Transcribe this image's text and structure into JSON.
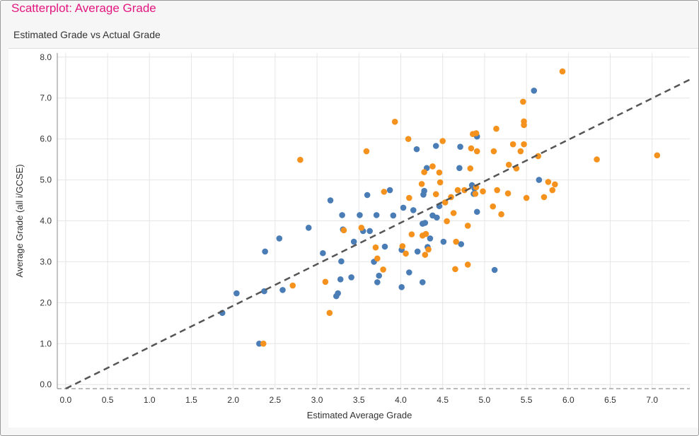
{
  "page": {
    "title": "Scatterplot: Average Grade",
    "subtitle": "Estimated Grade vs Actual Grade"
  },
  "colors": {
    "title": "#e3177f",
    "series_blue": "#4a7db5",
    "series_orange": "#f5921e",
    "trend_line": "#555555",
    "grid": "#e6e6e6"
  },
  "chart_data": {
    "type": "scatter",
    "title": "",
    "xlabel": "Estimated Average Grade",
    "ylabel": "Average Grade (all i/GCSE)",
    "xlim": [
      -0.1,
      7.45
    ],
    "ylim": [
      -0.1,
      8.1
    ],
    "xticks": [
      "0.0",
      "0.5",
      "1.0",
      "1.5",
      "2.0",
      "2.5",
      "3.0",
      "3.5",
      "4.0",
      "4.5",
      "5.0",
      "5.5",
      "6.0",
      "6.5",
      "7.0"
    ],
    "yticks": [
      "0.0",
      "1.0",
      "2.0",
      "3.0",
      "4.0",
      "5.0",
      "6.0",
      "7.0",
      "8.0"
    ],
    "grid": true,
    "legend": "none",
    "reference_line": {
      "style": "dashed",
      "from": [
        0.0,
        -0.1
      ],
      "to": [
        7.45,
        7.45
      ]
    },
    "series": [
      {
        "color": "#4a7db5",
        "points": [
          [
            1.87,
            1.75
          ],
          [
            2.04,
            2.23
          ],
          [
            2.31,
            1.0
          ],
          [
            2.37,
            2.28
          ],
          [
            2.38,
            3.25
          ],
          [
            2.55,
            3.57
          ],
          [
            2.59,
            2.31
          ],
          [
            2.9,
            3.83
          ],
          [
            3.07,
            3.21
          ],
          [
            3.16,
            4.5
          ],
          [
            3.23,
            2.16
          ],
          [
            3.25,
            2.23
          ],
          [
            3.28,
            2.57
          ],
          [
            3.29,
            3.01
          ],
          [
            3.3,
            4.14
          ],
          [
            3.31,
            3.79
          ],
          [
            3.41,
            2.62
          ],
          [
            3.44,
            3.49
          ],
          [
            3.51,
            4.14
          ],
          [
            3.55,
            3.75
          ],
          [
            3.6,
            4.63
          ],
          [
            3.63,
            3.75
          ],
          [
            3.68,
            3.0
          ],
          [
            3.71,
            4.14
          ],
          [
            3.72,
            2.5
          ],
          [
            3.74,
            2.66
          ],
          [
            3.81,
            3.37
          ],
          [
            3.87,
            4.75
          ],
          [
            3.91,
            4.13
          ],
          [
            4.01,
            3.29
          ],
          [
            4.01,
            2.38
          ],
          [
            4.03,
            4.32
          ],
          [
            4.1,
            2.74
          ],
          [
            4.15,
            4.26
          ],
          [
            4.19,
            5.75
          ],
          [
            4.2,
            3.25
          ],
          [
            4.26,
            3.93
          ],
          [
            4.26,
            2.5
          ],
          [
            4.27,
            4.64
          ],
          [
            4.28,
            4.73
          ],
          [
            4.29,
            3.95
          ],
          [
            4.31,
            5.29
          ],
          [
            4.32,
            3.36
          ],
          [
            4.35,
            3.57
          ],
          [
            4.38,
            4.13
          ],
          [
            4.42,
            5.83
          ],
          [
            4.43,
            4.08
          ],
          [
            4.46,
            4.36
          ],
          [
            4.51,
            3.49
          ],
          [
            4.7,
            5.29
          ],
          [
            4.71,
            5.81
          ],
          [
            4.72,
            3.43
          ],
          [
            4.85,
            4.87
          ],
          [
            4.87,
            4.66
          ],
          [
            4.88,
            4.79
          ],
          [
            4.91,
            6.06
          ],
          [
            4.91,
            4.22
          ],
          [
            5.12,
            2.8
          ],
          [
            5.59,
            7.18
          ],
          [
            5.65,
            5.0
          ]
        ]
      },
      {
        "color": "#f5921e",
        "points": [
          [
            2.36,
            1.0
          ],
          [
            2.71,
            2.42
          ],
          [
            2.8,
            5.49
          ],
          [
            3.1,
            2.51
          ],
          [
            3.15,
            1.75
          ],
          [
            3.32,
            3.77
          ],
          [
            3.53,
            3.83
          ],
          [
            3.59,
            5.7
          ],
          [
            3.7,
            3.35
          ],
          [
            3.72,
            3.08
          ],
          [
            3.79,
            2.81
          ],
          [
            3.8,
            4.71
          ],
          [
            3.93,
            6.42
          ],
          [
            4.02,
            3.38
          ],
          [
            4.06,
            3.2
          ],
          [
            4.09,
            6.0
          ],
          [
            4.1,
            4.56
          ],
          [
            4.13,
            3.67
          ],
          [
            4.25,
            4.9
          ],
          [
            4.26,
            3.64
          ],
          [
            4.28,
            5.19
          ],
          [
            4.29,
            3.17
          ],
          [
            4.3,
            3.68
          ],
          [
            4.33,
            3.3
          ],
          [
            4.38,
            5.33
          ],
          [
            4.42,
            4.65
          ],
          [
            4.46,
            5.18
          ],
          [
            4.47,
            4.94
          ],
          [
            4.5,
            5.95
          ],
          [
            4.53,
            4.45
          ],
          [
            4.55,
            3.99
          ],
          [
            4.6,
            4.58
          ],
          [
            4.63,
            4.19
          ],
          [
            4.65,
            2.82
          ],
          [
            4.66,
            3.49
          ],
          [
            4.68,
            4.75
          ],
          [
            4.76,
            4.75
          ],
          [
            4.8,
            3.88
          ],
          [
            4.8,
            2.93
          ],
          [
            4.83,
            5.28
          ],
          [
            4.84,
            5.77
          ],
          [
            4.86,
            6.12
          ],
          [
            4.89,
            4.66
          ],
          [
            4.9,
            6.14
          ],
          [
            4.9,
            4.82
          ],
          [
            4.91,
            5.7
          ],
          [
            4.98,
            4.72
          ],
          [
            5.1,
            4.35
          ],
          [
            5.11,
            5.7
          ],
          [
            5.14,
            6.25
          ],
          [
            5.15,
            4.75
          ],
          [
            5.2,
            4.16
          ],
          [
            5.28,
            4.67
          ],
          [
            5.29,
            5.37
          ],
          [
            5.34,
            5.87
          ],
          [
            5.38,
            5.28
          ],
          [
            5.43,
            5.7
          ],
          [
            5.46,
            6.91
          ],
          [
            5.47,
            6.43
          ],
          [
            5.47,
            6.34
          ],
          [
            5.47,
            5.87
          ],
          [
            5.5,
            4.56
          ],
          [
            5.64,
            5.58
          ],
          [
            5.71,
            4.58
          ],
          [
            5.76,
            4.95
          ],
          [
            5.81,
            4.75
          ],
          [
            5.84,
            4.89
          ],
          [
            5.93,
            7.65
          ],
          [
            6.34,
            5.5
          ],
          [
            7.06,
            5.6
          ]
        ]
      }
    ]
  }
}
